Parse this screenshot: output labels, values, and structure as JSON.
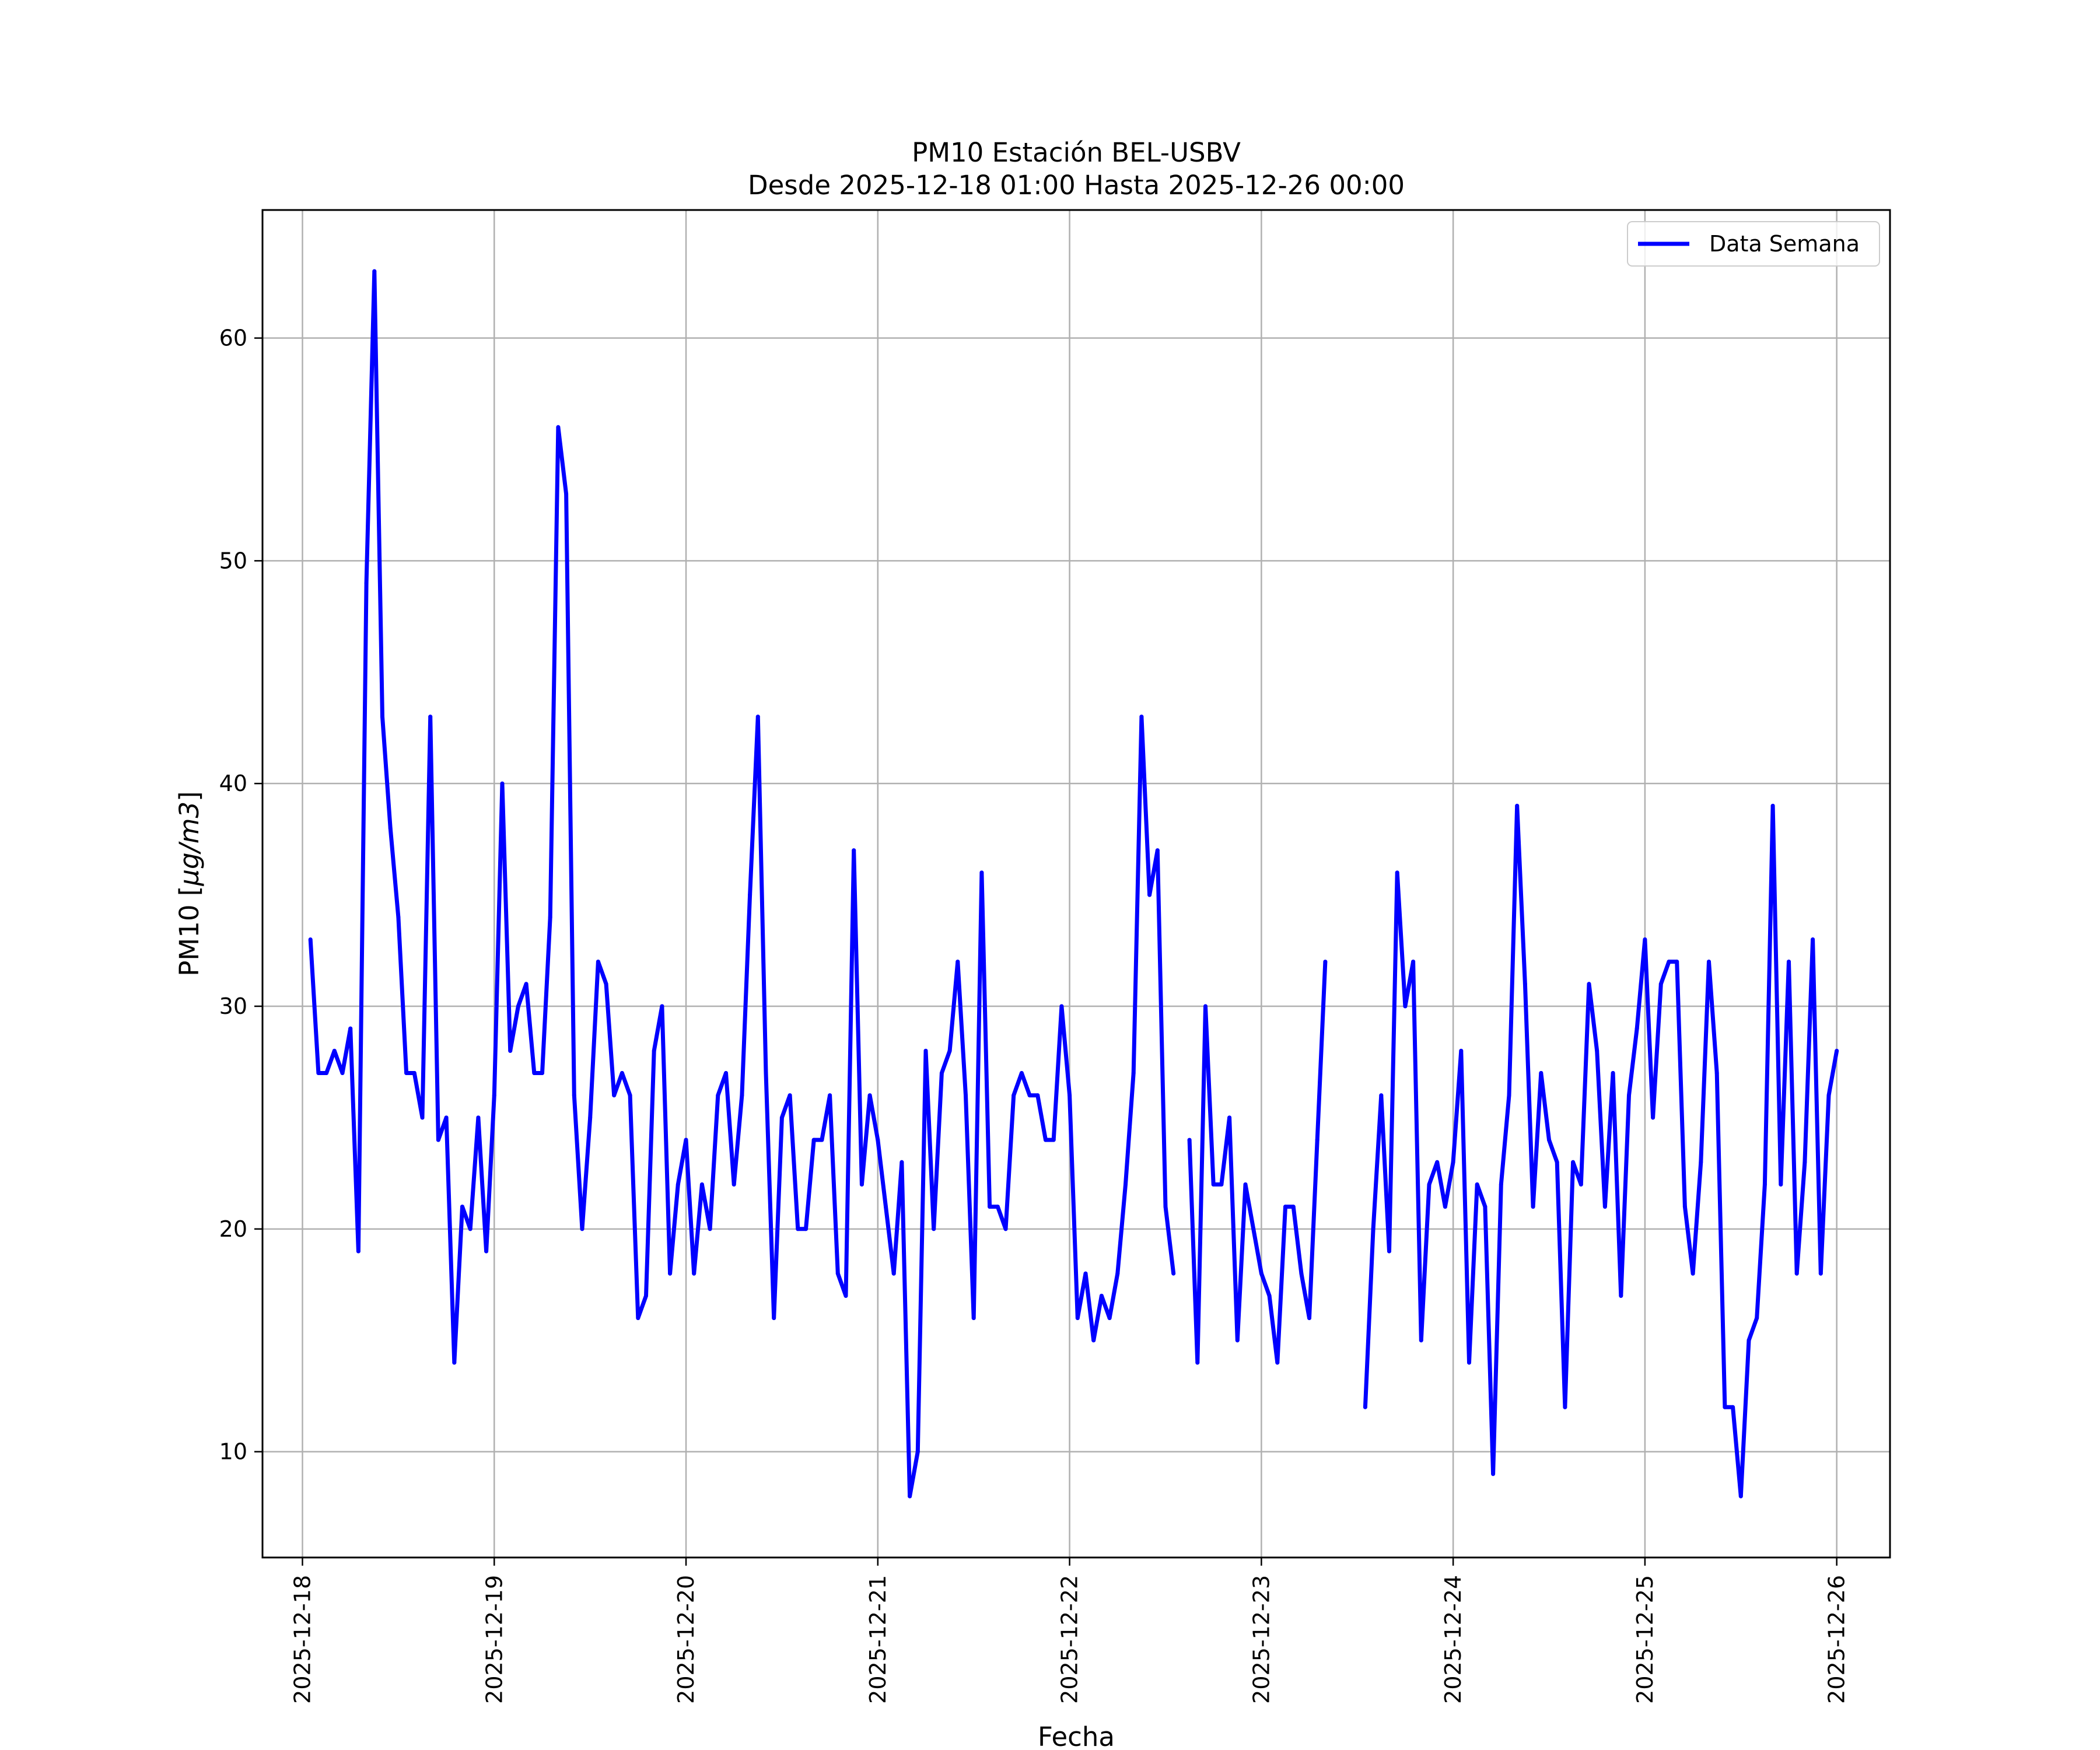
{
  "chart_data": {
    "type": "line",
    "title_line1": "PM10 Estación BEL-USBV",
    "title_line2": "Desde 2025-12-18 01:00 Hasta 2025-12-26 00:00",
    "xlabel": "Fecha",
    "ylabel_prefix": "PM10 [",
    "ylabel_unit": "μg/m3",
    "ylabel_suffix": "]",
    "grid": true,
    "legend_position": "top-right",
    "xlim": [
      "2025-12-17 19:00",
      "2025-12-26 06:40"
    ],
    "ylim": [
      5.25,
      65.75
    ],
    "x_ticks": [
      "2025-12-18",
      "2025-12-19",
      "2025-12-20",
      "2025-12-21",
      "2025-12-22",
      "2025-12-23",
      "2025-12-24",
      "2025-12-25",
      "2025-12-26"
    ],
    "y_ticks": [
      10,
      20,
      30,
      40,
      50,
      60
    ],
    "series": [
      {
        "name": "Data Semana",
        "color": "#0000ff",
        "points": [
          [
            "2025-12-18 01:00",
            33
          ],
          [
            "2025-12-18 02:00",
            27
          ],
          [
            "2025-12-18 03:00",
            27
          ],
          [
            "2025-12-18 04:00",
            28
          ],
          [
            "2025-12-18 05:00",
            27
          ],
          [
            "2025-12-18 06:00",
            29
          ],
          [
            "2025-12-18 07:00",
            19
          ],
          [
            "2025-12-18 08:00",
            49
          ],
          [
            "2025-12-18 09:00",
            63
          ],
          [
            "2025-12-18 10:00",
            43
          ],
          [
            "2025-12-18 11:00",
            38
          ],
          [
            "2025-12-18 12:00",
            34
          ],
          [
            "2025-12-18 13:00",
            27
          ],
          [
            "2025-12-18 14:00",
            27
          ],
          [
            "2025-12-18 15:00",
            25
          ],
          [
            "2025-12-18 16:00",
            43
          ],
          [
            "2025-12-18 17:00",
            24
          ],
          [
            "2025-12-18 18:00",
            25
          ],
          [
            "2025-12-18 19:00",
            14
          ],
          [
            "2025-12-18 20:00",
            21
          ],
          [
            "2025-12-18 21:00",
            20
          ],
          [
            "2025-12-18 22:00",
            25
          ],
          [
            "2025-12-18 23:00",
            19
          ],
          [
            "2025-12-19 00:00",
            26
          ],
          [
            "2025-12-19 01:00",
            40
          ],
          [
            "2025-12-19 02:00",
            28
          ],
          [
            "2025-12-19 03:00",
            30
          ],
          [
            "2025-12-19 04:00",
            31
          ],
          [
            "2025-12-19 05:00",
            27
          ],
          [
            "2025-12-19 06:00",
            27
          ],
          [
            "2025-12-19 07:00",
            34
          ],
          [
            "2025-12-19 08:00",
            56
          ],
          [
            "2025-12-19 09:00",
            53
          ],
          [
            "2025-12-19 10:00",
            26
          ],
          [
            "2025-12-19 11:00",
            20
          ],
          [
            "2025-12-19 12:00",
            25
          ],
          [
            "2025-12-19 13:00",
            32
          ],
          [
            "2025-12-19 14:00",
            31
          ],
          [
            "2025-12-19 15:00",
            26
          ],
          [
            "2025-12-19 16:00",
            27
          ],
          [
            "2025-12-19 17:00",
            26
          ],
          [
            "2025-12-19 18:00",
            16
          ],
          [
            "2025-12-19 19:00",
            17
          ],
          [
            "2025-12-19 20:00",
            28
          ],
          [
            "2025-12-19 21:00",
            30
          ],
          [
            "2025-12-19 22:00",
            18
          ],
          [
            "2025-12-19 23:00",
            22
          ],
          [
            "2025-12-20 00:00",
            24
          ],
          [
            "2025-12-20 01:00",
            18
          ],
          [
            "2025-12-20 02:00",
            22
          ],
          [
            "2025-12-20 03:00",
            20
          ],
          [
            "2025-12-20 04:00",
            26
          ],
          [
            "2025-12-20 05:00",
            27
          ],
          [
            "2025-12-20 06:00",
            22
          ],
          [
            "2025-12-20 07:00",
            26
          ],
          [
            "2025-12-20 08:00",
            35
          ],
          [
            "2025-12-20 09:00",
            43
          ],
          [
            "2025-12-20 10:00",
            27
          ],
          [
            "2025-12-20 11:00",
            16
          ],
          [
            "2025-12-20 12:00",
            25
          ],
          [
            "2025-12-20 13:00",
            26
          ],
          [
            "2025-12-20 14:00",
            20
          ],
          [
            "2025-12-20 15:00",
            20
          ],
          [
            "2025-12-20 16:00",
            24
          ],
          [
            "2025-12-20 17:00",
            24
          ],
          [
            "2025-12-20 18:00",
            26
          ],
          [
            "2025-12-20 19:00",
            18
          ],
          [
            "2025-12-20 20:00",
            17
          ],
          [
            "2025-12-20 21:00",
            37
          ],
          [
            "2025-12-20 22:00",
            22
          ],
          [
            "2025-12-20 23:00",
            26
          ],
          [
            "2025-12-21 00:00",
            24
          ],
          [
            "2025-12-21 01:00",
            21
          ],
          [
            "2025-12-21 02:00",
            18
          ],
          [
            "2025-12-21 03:00",
            23
          ],
          [
            "2025-12-21 04:00",
            8
          ],
          [
            "2025-12-21 05:00",
            10
          ],
          [
            "2025-12-21 06:00",
            28
          ],
          [
            "2025-12-21 07:00",
            20
          ],
          [
            "2025-12-21 08:00",
            27
          ],
          [
            "2025-12-21 09:00",
            28
          ],
          [
            "2025-12-21 10:00",
            32
          ],
          [
            "2025-12-21 11:00",
            26
          ],
          [
            "2025-12-21 12:00",
            16
          ],
          [
            "2025-12-21 13:00",
            36
          ],
          [
            "2025-12-21 14:00",
            21
          ],
          [
            "2025-12-21 15:00",
            21
          ],
          [
            "2025-12-21 16:00",
            20
          ],
          [
            "2025-12-21 17:00",
            26
          ],
          [
            "2025-12-21 18:00",
            27
          ],
          [
            "2025-12-21 19:00",
            26
          ],
          [
            "2025-12-21 20:00",
            26
          ],
          [
            "2025-12-21 21:00",
            24
          ],
          [
            "2025-12-21 22:00",
            24
          ],
          [
            "2025-12-21 23:00",
            30
          ],
          [
            "2025-12-22 00:00",
            26
          ],
          [
            "2025-12-22 01:00",
            16
          ],
          [
            "2025-12-22 02:00",
            18
          ],
          [
            "2025-12-22 03:00",
            15
          ],
          [
            "2025-12-22 04:00",
            17
          ],
          [
            "2025-12-22 05:00",
            16
          ],
          [
            "2025-12-22 06:00",
            18
          ],
          [
            "2025-12-22 07:00",
            22
          ],
          [
            "2025-12-22 08:00",
            27
          ],
          [
            "2025-12-22 09:00",
            43
          ],
          [
            "2025-12-22 10:00",
            35
          ],
          [
            "2025-12-22 11:00",
            37
          ],
          [
            "2025-12-22 12:00",
            21
          ],
          [
            "2025-12-22 13:00",
            18
          ],
          [
            "2025-12-22 14:00",
            null
          ],
          [
            "2025-12-22 15:00",
            24
          ],
          [
            "2025-12-22 16:00",
            14
          ],
          [
            "2025-12-22 17:00",
            30
          ],
          [
            "2025-12-22 18:00",
            22
          ],
          [
            "2025-12-22 19:00",
            22
          ],
          [
            "2025-12-22 20:00",
            25
          ],
          [
            "2025-12-22 21:00",
            15
          ],
          [
            "2025-12-22 22:00",
            22
          ],
          [
            "2025-12-22 23:00",
            20
          ],
          [
            "2025-12-23 00:00",
            18
          ],
          [
            "2025-12-23 01:00",
            17
          ],
          [
            "2025-12-23 02:00",
            14
          ],
          [
            "2025-12-23 03:00",
            21
          ],
          [
            "2025-12-23 04:00",
            21
          ],
          [
            "2025-12-23 05:00",
            18
          ],
          [
            "2025-12-23 06:00",
            16
          ],
          [
            "2025-12-23 07:00",
            24
          ],
          [
            "2025-12-23 08:00",
            32
          ],
          [
            "2025-12-23 09:00",
            null
          ],
          [
            "2025-12-23 10:00",
            null
          ],
          [
            "2025-12-23 11:00",
            null
          ],
          [
            "2025-12-23 12:00",
            null
          ],
          [
            "2025-12-23 13:00",
            12
          ],
          [
            "2025-12-23 14:00",
            20
          ],
          [
            "2025-12-23 15:00",
            26
          ],
          [
            "2025-12-23 16:00",
            19
          ],
          [
            "2025-12-23 17:00",
            36
          ],
          [
            "2025-12-23 18:00",
            30
          ],
          [
            "2025-12-23 19:00",
            32
          ],
          [
            "2025-12-23 20:00",
            15
          ],
          [
            "2025-12-23 21:00",
            22
          ],
          [
            "2025-12-23 22:00",
            23
          ],
          [
            "2025-12-23 23:00",
            21
          ],
          [
            "2025-12-24 00:00",
            23
          ],
          [
            "2025-12-24 01:00",
            28
          ],
          [
            "2025-12-24 02:00",
            14
          ],
          [
            "2025-12-24 03:00",
            22
          ],
          [
            "2025-12-24 04:00",
            21
          ],
          [
            "2025-12-24 05:00",
            9
          ],
          [
            "2025-12-24 06:00",
            22
          ],
          [
            "2025-12-24 07:00",
            26
          ],
          [
            "2025-12-24 08:00",
            39
          ],
          [
            "2025-12-24 09:00",
            31
          ],
          [
            "2025-12-24 10:00",
            21
          ],
          [
            "2025-12-24 11:00",
            27
          ],
          [
            "2025-12-24 12:00",
            24
          ],
          [
            "2025-12-24 13:00",
            23
          ],
          [
            "2025-12-24 14:00",
            12
          ],
          [
            "2025-12-24 15:00",
            23
          ],
          [
            "2025-12-24 16:00",
            22
          ],
          [
            "2025-12-24 17:00",
            31
          ],
          [
            "2025-12-24 18:00",
            28
          ],
          [
            "2025-12-24 19:00",
            21
          ],
          [
            "2025-12-24 20:00",
            27
          ],
          [
            "2025-12-24 21:00",
            17
          ],
          [
            "2025-12-24 22:00",
            26
          ],
          [
            "2025-12-24 23:00",
            29
          ],
          [
            "2025-12-25 00:00",
            33
          ],
          [
            "2025-12-25 01:00",
            25
          ],
          [
            "2025-12-25 02:00",
            31
          ],
          [
            "2025-12-25 03:00",
            32
          ],
          [
            "2025-12-25 04:00",
            32
          ],
          [
            "2025-12-25 05:00",
            21
          ],
          [
            "2025-12-25 06:00",
            18
          ],
          [
            "2025-12-25 07:00",
            23
          ],
          [
            "2025-12-25 08:00",
            32
          ],
          [
            "2025-12-25 09:00",
            27
          ],
          [
            "2025-12-25 10:00",
            12
          ],
          [
            "2025-12-25 11:00",
            12
          ],
          [
            "2025-12-25 12:00",
            8
          ],
          [
            "2025-12-25 13:00",
            15
          ],
          [
            "2025-12-25 14:00",
            16
          ],
          [
            "2025-12-25 15:00",
            22
          ],
          [
            "2025-12-25 16:00",
            39
          ],
          [
            "2025-12-25 17:00",
            22
          ],
          [
            "2025-12-25 18:00",
            32
          ],
          [
            "2025-12-25 19:00",
            18
          ],
          [
            "2025-12-25 20:00",
            23
          ],
          [
            "2025-12-25 21:00",
            33
          ],
          [
            "2025-12-25 22:00",
            18
          ],
          [
            "2025-12-25 23:00",
            26
          ],
          [
            "2025-12-26 00:00",
            28
          ]
        ]
      }
    ]
  }
}
